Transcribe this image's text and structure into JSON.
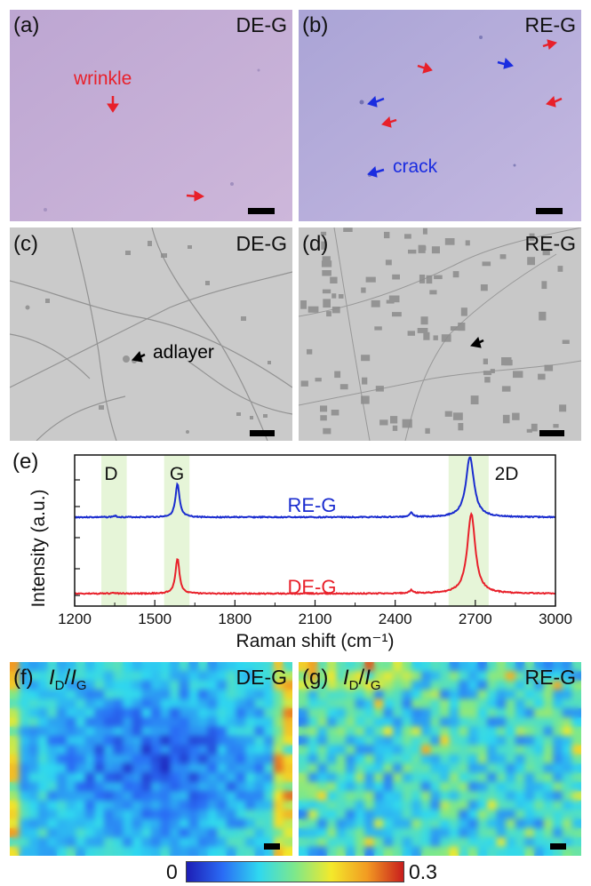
{
  "panels": {
    "a": {
      "label": "(a)",
      "tag": "DE-G",
      "annotations": [
        "wrinkle"
      ]
    },
    "b": {
      "label": "(b)",
      "tag": "RE-G",
      "annotations": [
        "crack"
      ]
    },
    "c": {
      "label": "(c)",
      "tag": "DE-G",
      "annotations": [
        "adlayer"
      ]
    },
    "d": {
      "label": "(d)",
      "tag": "RE-G"
    },
    "e": {
      "label": "(e)"
    },
    "f": {
      "label": "(f)",
      "tag": "DE-G",
      "ratio_num": "I",
      "ratio_num_sub": "D",
      "ratio_den": "I",
      "ratio_den_sub": "G"
    },
    "g": {
      "label": "(g)",
      "tag": "RE-G",
      "ratio_num": "I",
      "ratio_num_sub": "D",
      "ratio_den": "I",
      "ratio_den_sub": "G"
    }
  },
  "colors": {
    "optical_bg": "#c9b3d8",
    "optical_bg_b": "#b8b0dc",
    "sem_bg": "#c9c9c9",
    "arrow_red": "#e8202a",
    "arrow_blue": "#1a2ce0",
    "arrow_black": "#000000",
    "re_g_line": "#1a2ccf",
    "de_g_line": "#e8202a",
    "band_fill": "#e6f5d8"
  },
  "colorbar": {
    "min_label": "0",
    "max_label": "0.3",
    "colors": [
      "#1d1db5",
      "#2a6cf5",
      "#2fd8f0",
      "#7ee88a",
      "#f3e92b",
      "#f29a22",
      "#c81d1d"
    ]
  },
  "chart_data": {
    "type": "line",
    "xlabel": "Raman shift (cm⁻¹)",
    "ylabel": "Intensity (a.u.)",
    "xlim": [
      1200,
      3000
    ],
    "xticks": [
      "1200",
      "1500",
      "1800",
      "2100",
      "2400",
      "2700",
      "3000"
    ],
    "bands": [
      {
        "label": "D",
        "from": 1300,
        "to": 1395
      },
      {
        "label": "G",
        "from": 1535,
        "to": 1630
      },
      {
        "label": "2D",
        "from": 2600,
        "to": 2750
      }
    ],
    "series": [
      {
        "name": "RE-G",
        "peaks": [
          {
            "x": 1350,
            "h": 0.02
          },
          {
            "x": 1585,
            "h": 0.55
          },
          {
            "x": 2460,
            "h": 0.07
          },
          {
            "x": 2680,
            "h": 1.0
          }
        ],
        "offset": 1
      },
      {
        "name": "DE-G",
        "peaks": [
          {
            "x": 1350,
            "h": 0.01
          },
          {
            "x": 1585,
            "h": 0.55
          },
          {
            "x": 2460,
            "h": 0.05
          },
          {
            "x": 2685,
            "h": 1.25
          }
        ],
        "offset": 0
      }
    ]
  }
}
